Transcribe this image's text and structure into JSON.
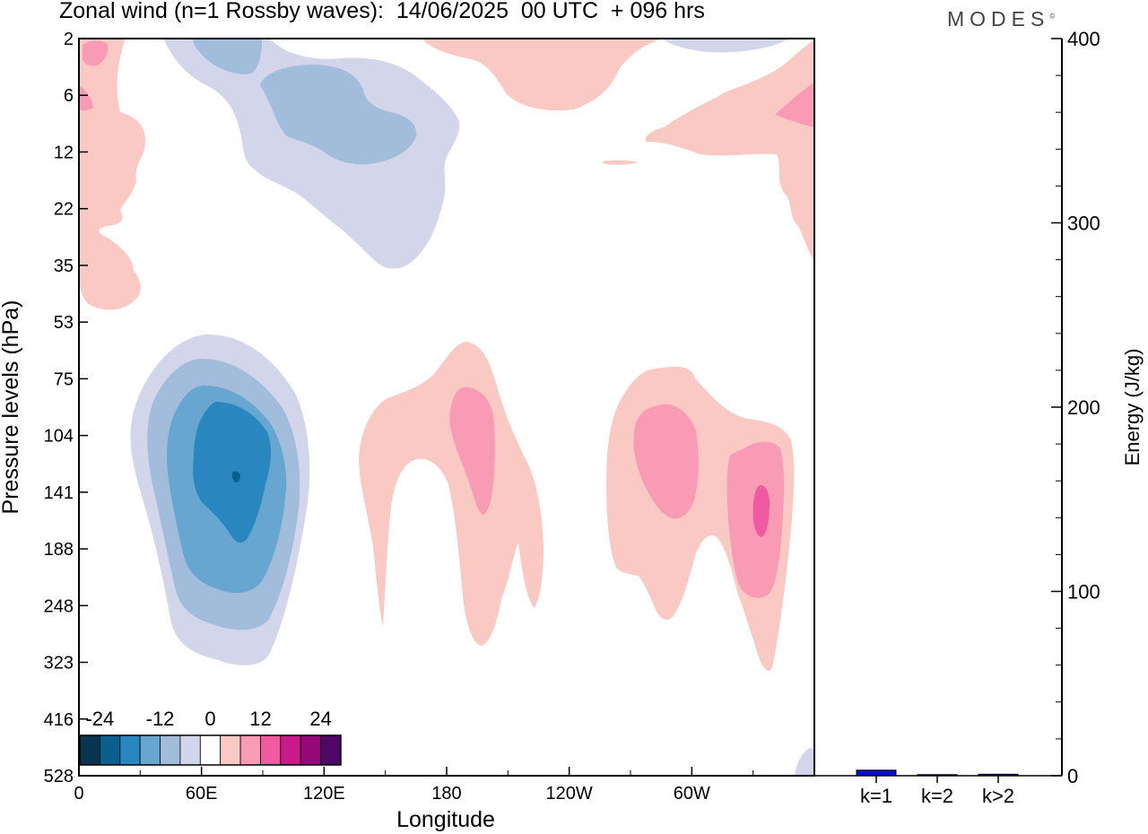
{
  "header": {
    "title": "Zonal wind (n=1 Rossby waves):  14/06/2025  00 UTC  + 096 hrs",
    "brand": "MODES",
    "brand_mark": "©"
  },
  "chart_data": [
    {
      "type": "heatmap",
      "title": "Zonal wind (n=1 Rossby waves):  14/06/2025  00 UTC  + 096 hrs",
      "xlabel": "Longitude",
      "ylabel": "Pressure levels (hPa)",
      "x_ticks": [
        {
          "label": "0",
          "lon": 0
        },
        {
          "label": "60E",
          "lon": 60
        },
        {
          "label": "120E",
          "lon": 120
        },
        {
          "label": "180",
          "lon": 180
        },
        {
          "label": "120W",
          "lon": 240
        },
        {
          "label": "60W",
          "lon": 300
        }
      ],
      "xlim": [
        0,
        360
      ],
      "y_levels": [
        "2",
        "6",
        "12",
        "22",
        "35",
        "53",
        "75",
        "104",
        "141",
        "188",
        "248",
        "323",
        "416",
        "528"
      ],
      "colorbar": {
        "tick_labels": [
          "-24",
          "-12",
          "0",
          "12",
          "24"
        ],
        "tick_values": [
          -24,
          -12,
          0,
          12,
          24
        ],
        "bin_edges": [
          -30,
          -24,
          -18,
          -15,
          -12,
          -9,
          -6,
          6,
          9,
          12,
          15,
          18,
          24,
          30
        ],
        "colors": [
          "#08344f",
          "#0a5f8e",
          "#2a86be",
          "#66a6d0",
          "#a2bcdc",
          "#d3d6ea",
          "#ffffff",
          "#fbc9c4",
          "#f99bb4",
          "#f05aa0",
          "#c91a8c",
          "#96087a",
          "#500866"
        ]
      },
      "features": [
        {
          "name": "negative-lower-anomaly",
          "center_lon": 77,
          "center_level": "141",
          "min_value": -24
        },
        {
          "name": "negative-upper-anomaly",
          "center_lon": 150,
          "center_level": "12",
          "min_value": -9
        },
        {
          "name": "positive-anomaly-180",
          "center_lon": 192,
          "center_level": "104",
          "max_value": 12
        },
        {
          "name": "positive-anomaly-70W",
          "center_lon": 290,
          "center_level": "104",
          "max_value": 12
        },
        {
          "name": "positive-anomaly-30W",
          "center_lon": 333,
          "center_level": "141",
          "max_value": 15
        }
      ]
    },
    {
      "type": "bar",
      "categories": [
        "k=1",
        "k=2",
        "k>2"
      ],
      "values": [
        3,
        0.3,
        0.8
      ],
      "ylabel": "Energy (J/kg)",
      "ylim": [
        0,
        400
      ],
      "y_major_ticks": [
        0,
        100,
        200,
        300,
        400
      ],
      "y_minor_step": 20,
      "colors": [
        "#0d0dcc",
        "#0d0dcc",
        "#0d0dcc"
      ]
    }
  ]
}
